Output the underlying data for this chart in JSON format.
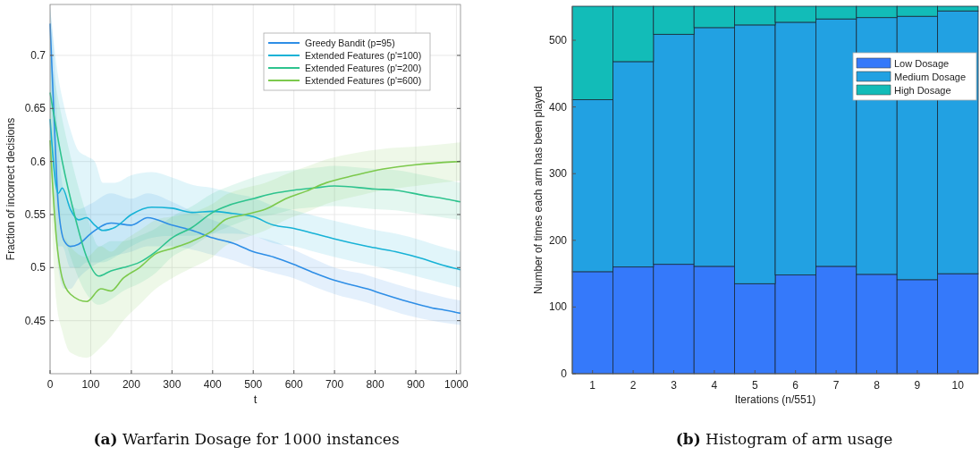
{
  "chart_data": [
    {
      "type": "line",
      "title": "(a) Warfarin Dosage for 1000 instances",
      "xlabel": "t",
      "ylabel": "Fraction of incorrect decisions",
      "xlim": [
        0,
        1010
      ],
      "ylim": [
        0.4,
        0.748
      ],
      "xticks": [
        0,
        100,
        200,
        300,
        400,
        500,
        600,
        700,
        800,
        900,
        1000
      ],
      "yticks": [
        0.45,
        0.5,
        0.55,
        0.6,
        0.65,
        0.7
      ],
      "grid": true,
      "legend": "top right",
      "series": [
        {
          "name": "Greedy Bandit (p=95)",
          "color": "#2e8ee6",
          "x": [
            0,
            10,
            20,
            35,
            50,
            70,
            100,
            150,
            200,
            240,
            300,
            350,
            400,
            450,
            500,
            550,
            600,
            650,
            700,
            780,
            820,
            880,
            940,
            970,
            1010
          ],
          "values": [
            0.73,
            0.64,
            0.56,
            0.525,
            0.52,
            0.522,
            0.532,
            0.542,
            0.54,
            0.547,
            0.54,
            0.535,
            0.528,
            0.523,
            0.515,
            0.51,
            0.503,
            0.495,
            0.488,
            0.48,
            0.475,
            0.468,
            0.462,
            0.46,
            0.457
          ],
          "lower": [
            0.7,
            0.58,
            0.5,
            0.48,
            0.48,
            0.49,
            0.5,
            0.51,
            0.515,
            0.52,
            0.52,
            0.517,
            0.512,
            0.507,
            0.5,
            0.495,
            0.49,
            0.482,
            0.475,
            0.467,
            0.462,
            0.455,
            0.45,
            0.448,
            0.446
          ],
          "upper": [
            0.745,
            0.7,
            0.62,
            0.57,
            0.56,
            0.555,
            0.56,
            0.57,
            0.565,
            0.57,
            0.562,
            0.553,
            0.545,
            0.538,
            0.53,
            0.525,
            0.517,
            0.508,
            0.5,
            0.493,
            0.488,
            0.481,
            0.475,
            0.472,
            0.469
          ]
        },
        {
          "name": "Extended Features (p'=100)",
          "color": "#17b2d6",
          "x": [
            0,
            20,
            30,
            50,
            70,
            90,
            110,
            130,
            160,
            200,
            250,
            300,
            350,
            400,
            450,
            500,
            550,
            600,
            650,
            700,
            780,
            850,
            920,
            960,
            1010
          ],
          "values": [
            0.64,
            0.57,
            0.575,
            0.555,
            0.545,
            0.547,
            0.54,
            0.535,
            0.538,
            0.55,
            0.557,
            0.556,
            0.552,
            0.553,
            0.551,
            0.548,
            0.54,
            0.537,
            0.532,
            0.527,
            0.52,
            0.515,
            0.508,
            0.503,
            0.498
          ],
          "lower": [
            0.6,
            0.52,
            0.52,
            0.5,
            0.5,
            0.505,
            0.505,
            0.505,
            0.51,
            0.52,
            0.528,
            0.53,
            0.53,
            0.532,
            0.532,
            0.53,
            0.523,
            0.52,
            0.515,
            0.51,
            0.503,
            0.497,
            0.49,
            0.486,
            0.481
          ],
          "upper": [
            0.745,
            0.68,
            0.66,
            0.63,
            0.61,
            0.605,
            0.6,
            0.58,
            0.58,
            0.587,
            0.59,
            0.585,
            0.578,
            0.575,
            0.57,
            0.566,
            0.558,
            0.554,
            0.549,
            0.544,
            0.537,
            0.532,
            0.525,
            0.52,
            0.515
          ]
        },
        {
          "name": "Extended Features (p'=200)",
          "color": "#2ec38e",
          "x": [
            0,
            30,
            60,
            90,
            120,
            150,
            180,
            220,
            260,
            300,
            350,
            400,
            450,
            500,
            550,
            600,
            650,
            700,
            800,
            850,
            920,
            970,
            1010
          ],
          "values": [
            0.665,
            0.6,
            0.55,
            0.51,
            0.492,
            0.497,
            0.5,
            0.505,
            0.515,
            0.528,
            0.538,
            0.552,
            0.56,
            0.565,
            0.57,
            0.573,
            0.575,
            0.577,
            0.574,
            0.573,
            0.568,
            0.565,
            0.562
          ],
          "lower": [
            0.62,
            0.54,
            0.5,
            0.475,
            0.465,
            0.47,
            0.478,
            0.485,
            0.495,
            0.51,
            0.52,
            0.532,
            0.54,
            0.547,
            0.55,
            0.555,
            0.557,
            0.558,
            0.555,
            0.554,
            0.55,
            0.547,
            0.545
          ],
          "upper": [
            0.7,
            0.64,
            0.59,
            0.55,
            0.52,
            0.525,
            0.525,
            0.53,
            0.537,
            0.548,
            0.558,
            0.57,
            0.578,
            0.585,
            0.59,
            0.592,
            0.594,
            0.596,
            0.593,
            0.592,
            0.587,
            0.583,
            0.58
          ]
        },
        {
          "name": "Extended Features (p'=600)",
          "color": "#7cc94c",
          "x": [
            0,
            15,
            30,
            50,
            90,
            125,
            150,
            180,
            220,
            260,
            300,
            350,
            400,
            430,
            480,
            530,
            580,
            630,
            680,
            750,
            820,
            900,
            1010
          ],
          "values": [
            0.62,
            0.53,
            0.49,
            0.475,
            0.468,
            0.48,
            0.478,
            0.49,
            0.5,
            0.513,
            0.518,
            0.525,
            0.535,
            0.545,
            0.55,
            0.555,
            0.565,
            0.572,
            0.58,
            0.587,
            0.593,
            0.597,
            0.6
          ],
          "lower": [
            0.58,
            0.47,
            0.44,
            0.42,
            0.415,
            0.425,
            0.435,
            0.45,
            0.465,
            0.48,
            0.49,
            0.5,
            0.51,
            0.52,
            0.528,
            0.535,
            0.545,
            0.552,
            0.56,
            0.567,
            0.573,
            0.577,
            0.582
          ],
          "upper": [
            0.66,
            0.59,
            0.54,
            0.52,
            0.51,
            0.52,
            0.515,
            0.525,
            0.535,
            0.545,
            0.548,
            0.552,
            0.56,
            0.568,
            0.575,
            0.58,
            0.588,
            0.595,
            0.602,
            0.608,
            0.612,
            0.614,
            0.618
          ]
        }
      ]
    },
    {
      "type": "bar",
      "stacked": true,
      "title": "(b) Histogram of arm usage",
      "xlabel": "Iterations (n/551)",
      "ylabel": "Number of times each arm has been played",
      "categories": [
        "1",
        "2",
        "3",
        "4",
        "5",
        "6",
        "7",
        "8",
        "9",
        "10"
      ],
      "ylim": [
        0,
        551
      ],
      "yticks": [
        0,
        100,
        200,
        300,
        400,
        500
      ],
      "grid": false,
      "legend": "top right",
      "series": [
        {
          "name": "Low Dosage",
          "color": "#3579fa",
          "values": [
            153,
            160,
            164,
            161,
            135,
            148,
            161,
            149,
            141,
            150
          ]
        },
        {
          "name": "Medium Dosage",
          "color": "#22a1e2",
          "values": [
            258,
            308,
            345,
            358,
            388,
            379,
            371,
            385,
            395,
            394
          ]
        },
        {
          "name": "High Dosage",
          "color": "#12bcb8",
          "values": [
            140,
            83,
            42,
            32,
            28,
            24,
            19,
            17,
            15,
            7
          ]
        }
      ]
    }
  ]
}
